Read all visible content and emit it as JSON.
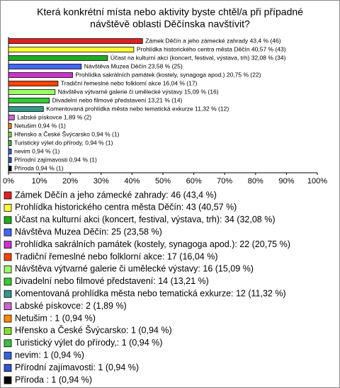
{
  "chart_data": {
    "type": "hbar",
    "title": [
      "Která konkrétní místa nebo aktivity byste chtěl/a při případné",
      "návštěvě oblasti Děčínska navštívit?"
    ],
    "values": [
      43.4,
      40.57,
      32.08,
      23.58,
      20.75,
      16.04,
      15.09,
      13.21,
      11.32,
      1.89,
      0.94,
      0.94,
      0.94,
      0.94,
      0.94,
      0.94
    ],
    "value_labels": [
      "Zámek Děčín a jeho zámecké zahrady 43,4 % (46)",
      "Prohlídka historického centra města Děčín 40,57 % (43)",
      "Účast na kulturní akci (koncert, festival, výstava, trh) 32,08 % (34)",
      "Návštěva Muzea Děčín 23,58 % (25)",
      "Prohlídka sakrálních památek (kostely, synagoga apod.) 20,75 % (22)",
      "Tradiční řemeslné nebo folklorní akce 16,04 % (17)",
      "Návštěva výtvarné galerie či umělecké výstavy 15,09 % (16)",
      "Divadelní nebo filmové představení 13,21 % (14)",
      "Komentovaná prohlídka města nebo tematická exkurze 11,32 % (12)",
      "Labské pískovce 1,89 % (2)",
      "Netušim  0,94 % (1)",
      "Hřensko a České Švýcarsko 0,94 % (1)",
      "Turistický výlet do přírody, 0,94 % (1)",
      "nevim 0,94 % (1)",
      "Přírodní zajímavosti 0,94 % (1)",
      "Příroda  0,94 % (1)"
    ],
    "legend_labels": [
      "Zámek Děčín a jeho zámecké zahrady: 46 (43,4 %)",
      "Prohlídka historického centra města Děčín: 43 (40,57 %)",
      "Účast na kulturní akci (koncert, festival, výstava, trh): 34 (32,08 %)",
      "Návštěva Muzea Děčín: 25 (23,58 %)",
      "Prohlídka sakrálních památek (kostely, synagoga apod.): 22 (20,75 %)",
      "Tradiční řemeslné nebo folklorní akce: 17 (16,04 %)",
      "Návštěva výtvarné galerie či umělecké výstavy: 16 (15,09 %)",
      "Divadelní nebo filmové představení: 14 (13,21 %)",
      "Komentovaná prohlídka města nebo tematická exkurze: 12 (11,32 %)",
      "Labské pískovce: 2 (1,89 %)",
      "Netušim : 1 (0,94 %)",
      "Hřensko a České Švýcarsko: 1 (0,94 %)",
      "Turistický výlet do přírody,: 1 (0,94 %)",
      "nevim: 1 (0,94 %)",
      "Přírodní zajímavosti: 1 (0,94 %)",
      "Příroda : 1 (0,94 %)"
    ],
    "colors": [
      "#e02020",
      "#ffff33",
      "#22aa22",
      "#4466ff",
      "#cc33cc",
      "#ff4400",
      "#99ff66",
      "#33cc33",
      "#339988",
      "#cc66cc",
      "#ff8800",
      "#88dd33",
      "#44bb44",
      "#3366dd",
      "#3355cc",
      "#000000"
    ],
    "xlim": [
      0,
      100
    ],
    "xticks": [
      {
        "value": 0,
        "label": "0%"
      },
      {
        "value": 10,
        "label": "10%"
      },
      {
        "value": 20,
        "label": "20%"
      },
      {
        "value": 30,
        "label": "30%"
      },
      {
        "value": 40,
        "label": "40%"
      },
      {
        "value": 50,
        "label": "50%"
      },
      {
        "value": 60,
        "label": "60%"
      },
      {
        "value": 70,
        "label": "70%"
      },
      {
        "value": 80,
        "label": "80%"
      },
      {
        "value": 90,
        "label": "90%"
      },
      {
        "value": 100,
        "label": "100%"
      }
    ]
  }
}
